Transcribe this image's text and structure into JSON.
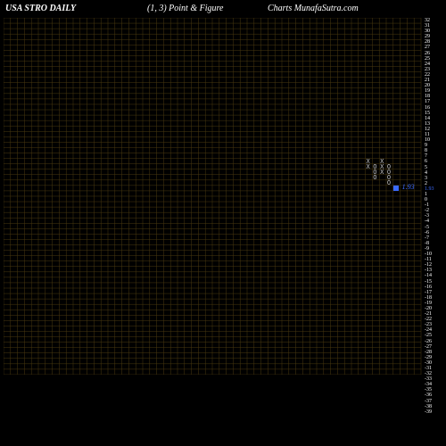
{
  "header": {
    "title_left": "USA STRO DAILY",
    "title_mid": "(1, 3) Point & Figure",
    "title_source": "Charts MunafaSutra.com"
  },
  "chart": {
    "type": "point-and-figure",
    "background_color": "#000000",
    "grid_color": "#4a3a10",
    "text_color": "#ffffff",
    "x_mark_color": "#c0c0c0",
    "o_mark_color": "#c0c0c0",
    "current_color": "#3a6aff",
    "grid": {
      "cols": 60,
      "rows": 66,
      "cell_w": 7.8,
      "cell_h": 6.06
    },
    "y_axis_labels": [
      "32",
      "31",
      "30",
      "29",
      "28",
      "27",
      "26",
      "25",
      "24",
      "23",
      "22",
      "21",
      "20",
      "19",
      "18",
      "17",
      "16",
      "15",
      "14",
      "13",
      "12",
      "11",
      "10",
      "9",
      "8",
      "7",
      "6",
      "5",
      "4",
      "3",
      "2",
      "1.93",
      "1",
      "0",
      "-1",
      "-2",
      "-3",
      "-4",
      "-5",
      "-6",
      "-7",
      "-8",
      "-9",
      "-10",
      "-11",
      "-12",
      "-13",
      "-14",
      "-15",
      "-16",
      "-17",
      "-18",
      "-19",
      "-20",
      "-21",
      "-22",
      "-23",
      "-24",
      "-25",
      "-26",
      "-27",
      "-28",
      "-29",
      "-30",
      "-31",
      "-32",
      "-33",
      "-34",
      "-35",
      "-36",
      "-37",
      "-38",
      "-39"
    ],
    "columns": [
      {
        "col": 52,
        "marks": [
          {
            "row": 26,
            "sym": "X"
          },
          {
            "row": 27,
            "sym": "X"
          }
        ]
      },
      {
        "col": 53,
        "marks": [
          {
            "row": 27,
            "sym": "O"
          },
          {
            "row": 28,
            "sym": "O"
          },
          {
            "row": 29,
            "sym": "O"
          }
        ]
      },
      {
        "col": 54,
        "marks": [
          {
            "row": 26,
            "sym": "X"
          },
          {
            "row": 27,
            "sym": "X"
          },
          {
            "row": 28,
            "sym": "X"
          }
        ]
      },
      {
        "col": 55,
        "marks": [
          {
            "row": 27,
            "sym": "O"
          },
          {
            "row": 28,
            "sym": "O"
          },
          {
            "row": 29,
            "sym": "O"
          },
          {
            "row": 30,
            "sym": "O"
          }
        ]
      }
    ],
    "current": {
      "value": "1.93",
      "col": 56,
      "row": 31
    }
  }
}
